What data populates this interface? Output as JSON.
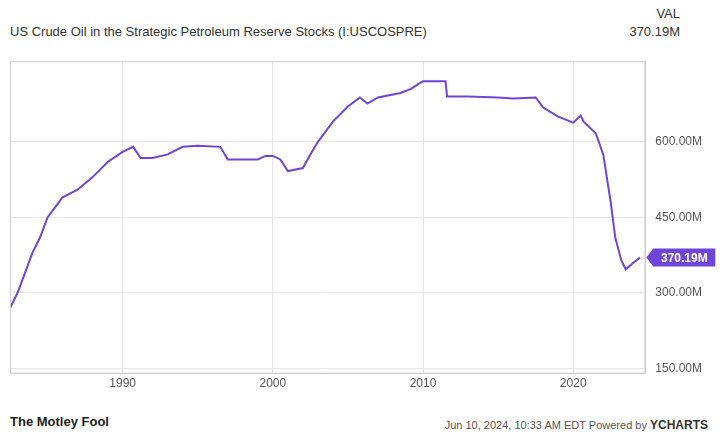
{
  "chart_data": {
    "type": "line",
    "title": "US Crude Oil in the Strategic Petroleum Reserve Stocks (I:USCOSPRE)",
    "value_header": "VAL",
    "last_value": {
      "value": 370.19,
      "label": "370.19M"
    },
    "footer_left": "The Motley Fool",
    "footer_right": "Jun 10, 2024, 10:33 AM EDT",
    "powered_by": "Powered by",
    "brand": "YCHARTS",
    "color": "#6f45d8",
    "grid": true,
    "xlim": [
      1982.5,
      2024.8
    ],
    "xticks": [
      1990,
      2000,
      2010,
      2020
    ],
    "ylim": [
      140,
      760
    ],
    "yticks": [
      {
        "value": 150,
        "label": "150.00M"
      },
      {
        "value": 300,
        "label": "300.00M"
      },
      {
        "value": 450,
        "label": "450.00M"
      },
      {
        "value": 600,
        "label": "600.00M"
      }
    ],
    "x": [
      1982.5,
      1983,
      1983.5,
      1984,
      1984.5,
      1985,
      1985.5,
      1986,
      1987,
      1988,
      1989,
      1990,
      1990.7,
      1991.2,
      1992,
      1993,
      1994,
      1995,
      1996.5,
      1997,
      1999,
      1999.5,
      2000,
      2000.5,
      2001,
      2002,
      2002.5,
      2003,
      2004,
      2005,
      2005.8,
      2006.3,
      2007,
      2008.5,
      2009.2,
      2009.7,
      2010,
      2011.5,
      2011.6,
      2013,
      2015,
      2016,
      2017.5,
      2018,
      2019,
      2020,
      2020.5,
      2020.7,
      2021.5,
      2022,
      2022.5,
      2022.8,
      2023.2,
      2023.5,
      2024,
      2024.45
    ],
    "values": [
      270,
      300,
      340,
      380,
      410,
      450,
      470,
      490,
      505,
      530,
      560,
      580,
      590,
      568,
      568,
      575,
      590,
      592,
      590,
      565,
      565,
      572,
      572,
      565,
      542,
      548,
      575,
      600,
      640,
      670,
      688,
      676,
      688,
      697,
      705,
      715,
      720,
      720,
      690,
      690,
      688,
      686,
      688,
      668,
      650,
      638,
      652,
      640,
      617,
      575,
      480,
      410,
      365,
      347,
      360,
      370.19
    ]
  }
}
